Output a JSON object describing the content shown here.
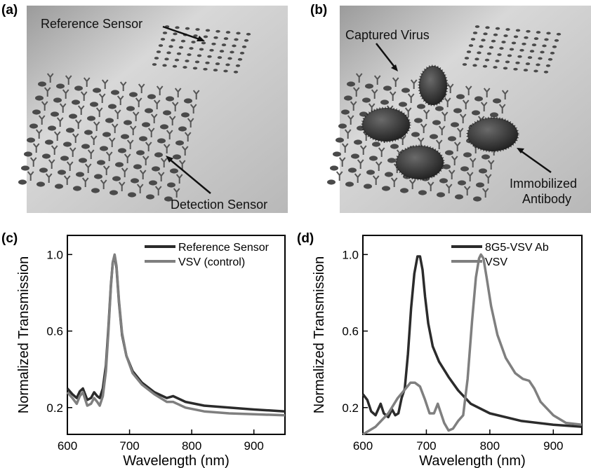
{
  "panels": {
    "a": {
      "label": "(a)",
      "annotations": {
        "reference": "Reference Sensor",
        "detection": "Detection Sensor"
      }
    },
    "b": {
      "label": "(b)",
      "annotations": {
        "captured": "Captured Virus",
        "immobilized_1": "Immobilized",
        "immobilized_2": "Antibody"
      }
    },
    "c": {
      "label": "(c)"
    },
    "d": {
      "label": "(d)"
    }
  },
  "colors": {
    "dark_series": "#2b2b2b",
    "light_series": "#7f7f7f",
    "surface": "#cfcfcf"
  },
  "chart_data": [
    {
      "type": "line",
      "panel": "(c)",
      "title": "",
      "xlabel": "Wavelength (nm)",
      "ylabel": "Normalized Transmission",
      "xlim": [
        600,
        950
      ],
      "ylim": [
        0.06,
        1.1
      ],
      "xticks": [
        "600",
        "700",
        "800",
        "900"
      ],
      "yticks": [
        "0.2",
        "0.6",
        "1.0"
      ],
      "legend_position": "top-right",
      "series": [
        {
          "name": "Reference Sensor",
          "color": "#2b2b2b",
          "x": [
            600,
            608,
            615,
            620,
            625,
            632,
            638,
            643,
            648,
            652,
            657,
            662,
            666,
            670,
            673,
            676,
            679,
            683,
            688,
            695,
            705,
            720,
            740,
            760,
            770,
            790,
            820,
            860,
            900,
            950
          ],
          "y": [
            0.3,
            0.27,
            0.25,
            0.285,
            0.3,
            0.24,
            0.25,
            0.28,
            0.26,
            0.25,
            0.3,
            0.42,
            0.62,
            0.84,
            0.96,
            0.99,
            0.93,
            0.75,
            0.58,
            0.47,
            0.39,
            0.33,
            0.28,
            0.25,
            0.26,
            0.23,
            0.21,
            0.2,
            0.19,
            0.18
          ]
        },
        {
          "name": "VSV  (control)",
          "color": "#7f7f7f",
          "x": [
            600,
            608,
            615,
            620,
            625,
            632,
            638,
            643,
            648,
            652,
            657,
            662,
            666,
            670,
            673,
            676,
            679,
            683,
            688,
            695,
            705,
            720,
            740,
            760,
            770,
            790,
            820,
            860,
            900,
            950
          ],
          "y": [
            0.28,
            0.25,
            0.22,
            0.26,
            0.28,
            0.21,
            0.22,
            0.25,
            0.23,
            0.21,
            0.26,
            0.39,
            0.6,
            0.83,
            0.96,
            1.0,
            0.94,
            0.76,
            0.59,
            0.47,
            0.38,
            0.32,
            0.27,
            0.23,
            0.23,
            0.2,
            0.18,
            0.17,
            0.165,
            0.16
          ]
        }
      ]
    },
    {
      "type": "line",
      "panel": "(d)",
      "title": "",
      "xlabel": "Wavelength (nm)",
      "ylabel": "Normalized Transmission",
      "xlim": [
        600,
        945
      ],
      "ylim": [
        0.06,
        1.1
      ],
      "xticks": [
        "600",
        "700",
        "800",
        "900"
      ],
      "yticks": [
        "0.2",
        "0.6",
        "1.0"
      ],
      "legend_position": "top-right",
      "series": [
        {
          "name": "8G5-VSV Ab",
          "color": "#2b2b2b",
          "x": [
            600,
            607,
            613,
            620,
            628,
            633,
            640,
            646,
            651,
            656,
            661,
            666,
            671,
            676,
            681,
            686,
            690,
            694,
            698,
            703,
            710,
            720,
            735,
            750,
            770,
            800,
            850,
            900,
            945
          ],
          "y": [
            0.27,
            0.24,
            0.18,
            0.16,
            0.22,
            0.17,
            0.15,
            0.19,
            0.16,
            0.17,
            0.25,
            0.3,
            0.48,
            0.72,
            0.9,
            0.99,
            0.99,
            0.92,
            0.78,
            0.64,
            0.52,
            0.44,
            0.36,
            0.29,
            0.22,
            0.17,
            0.13,
            0.11,
            0.1
          ]
        },
        {
          "name": "VSV",
          "color": "#7f7f7f",
          "x": [
            600,
            620,
            640,
            655,
            665,
            675,
            682,
            690,
            698,
            705,
            712,
            718,
            722,
            728,
            735,
            742,
            750,
            758,
            765,
            772,
            778,
            783,
            786,
            790,
            795,
            802,
            812,
            825,
            840,
            852,
            862,
            870,
            880,
            900,
            920,
            945
          ],
          "y": [
            0.06,
            0.1,
            0.17,
            0.25,
            0.29,
            0.33,
            0.33,
            0.31,
            0.24,
            0.17,
            0.17,
            0.22,
            0.18,
            0.12,
            0.08,
            0.09,
            0.13,
            0.16,
            0.35,
            0.65,
            0.88,
            0.98,
            1.0,
            0.98,
            0.88,
            0.73,
            0.58,
            0.46,
            0.38,
            0.35,
            0.34,
            0.3,
            0.23,
            0.16,
            0.12,
            0.11
          ]
        }
      ]
    }
  ]
}
